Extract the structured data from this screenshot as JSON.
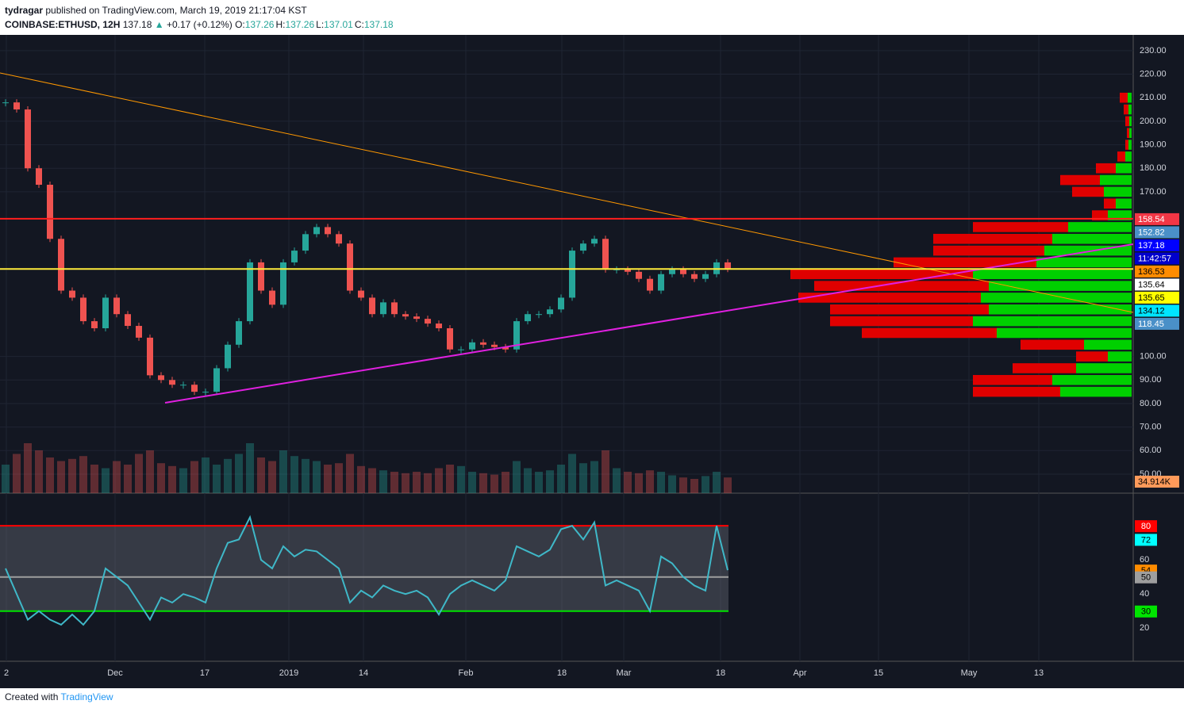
{
  "header": {
    "author": "tydragar",
    "published": "published on TradingView.com, March 19, 2019 21:17:04 KST",
    "symbol": "COINBASE:ETHUSD, 12H",
    "price": "137.18",
    "arrow": "▲",
    "change": "+0.17 (+0.12%)",
    "ohlc": [
      {
        "key": "O:",
        "val": "137.26"
      },
      {
        "key": "H:",
        "val": "137.26"
      },
      {
        "key": "L:",
        "val": "137.01"
      },
      {
        "key": "C:",
        "val": "137.18"
      }
    ]
  },
  "footer": {
    "prefix": "Created with",
    "brand": "TradingView"
  },
  "chart_data": {
    "type": "candlestick",
    "xtick_labels": [
      "2",
      "Dec",
      "17",
      "2019",
      "14",
      "Feb",
      "18",
      "Mar",
      "18",
      "Apr",
      "15",
      "May",
      "13"
    ],
    "up_color": "#26a69a",
    "down_color": "#ef5350",
    "values": [
      208,
      205,
      180,
      173,
      150,
      128,
      125,
      115,
      112,
      125,
      118,
      113,
      108,
      92,
      90,
      88,
      88,
      85,
      85,
      95,
      105,
      115,
      140,
      128,
      122,
      140,
      145,
      152,
      155,
      152,
      148,
      128,
      125,
      118,
      123,
      118,
      117,
      116,
      114,
      112,
      103,
      103,
      106,
      105,
      104,
      103,
      115,
      118,
      118,
      120,
      125,
      145,
      148,
      150,
      137,
      137,
      136,
      133,
      128,
      135,
      137,
      135,
      133,
      135,
      140,
      137.18
    ],
    "volumes": [
      40,
      55,
      70,
      60,
      50,
      45,
      48,
      52,
      40,
      35,
      45,
      40,
      55,
      60,
      42,
      38,
      35,
      45,
      50,
      40,
      48,
      55,
      70,
      50,
      45,
      60,
      52,
      48,
      45,
      40,
      42,
      55,
      38,
      35,
      32,
      30,
      28,
      30,
      28,
      35,
      40,
      38,
      30,
      28,
      26,
      30,
      45,
      35,
      30,
      32,
      40,
      55,
      42,
      45,
      60,
      35,
      30,
      28,
      32,
      30,
      25,
      22,
      20,
      24,
      30,
      22
    ],
    "ylim": [
      41.9,
      236.7
    ],
    "yticks": [
      {
        "value": 50,
        "label": "50.00"
      },
      {
        "value": 60,
        "label": "60.00"
      },
      {
        "value": 70,
        "label": "70.00"
      },
      {
        "value": 80,
        "label": "80.00"
      },
      {
        "value": 90,
        "label": "90.00"
      },
      {
        "value": 100,
        "label": "100.00"
      },
      {
        "value": 170,
        "label": "170.00"
      },
      {
        "value": 180,
        "label": "180.00"
      },
      {
        "value": 190,
        "label": "190.00"
      },
      {
        "value": 200,
        "label": "200.00"
      },
      {
        "value": 210,
        "label": "210.00"
      },
      {
        "value": 220,
        "label": "220.00"
      },
      {
        "value": 230,
        "label": "230.00"
      }
    ],
    "hlines": [
      {
        "value": 158.54,
        "color": "#ff1e1e"
      },
      {
        "value": 137.18,
        "color": "#ffeb3b"
      }
    ],
    "price_labels": [
      {
        "text": 158.54,
        "color": "#f23645"
      },
      {
        "text": 152.82,
        "color": "#4a90c8"
      },
      {
        "text": 137.18,
        "color": "#0000ff"
      },
      {
        "text": "11:42:57",
        "color": "#0000cc"
      },
      {
        "text": 136.53,
        "color": "#ff8c00"
      },
      {
        "text": 135.64,
        "color": "#ffffff"
      },
      {
        "text": 135.65,
        "color": "#ffff00"
      },
      {
        "text": 134.12,
        "color": "#00e5ff"
      },
      {
        "text": 118.45,
        "color": "#4a90c8"
      },
      {
        "text": "34.914K",
        "color": "#ff9a5a"
      }
    ],
    "profile_prices": [
      210,
      205,
      200,
      195,
      190,
      185,
      180,
      175,
      170,
      165,
      160,
      155,
      150,
      145,
      140,
      135,
      130,
      125,
      120,
      115,
      110,
      105,
      100,
      95,
      90,
      85
    ],
    "profile_up": [
      5,
      4,
      3,
      3,
      4,
      8,
      20,
      40,
      35,
      20,
      30,
      80,
      100,
      110,
      120,
      200,
      180,
      190,
      180,
      200,
      170,
      60,
      30,
      70,
      100,
      90
    ],
    "profile_down": [
      10,
      6,
      5,
      3,
      4,
      10,
      25,
      50,
      40,
      15,
      20,
      120,
      150,
      140,
      180,
      230,
      220,
      230,
      200,
      180,
      170,
      80,
      40,
      80,
      100,
      110
    ],
    "rsi": {
      "values": [
        55,
        40,
        25,
        30,
        25,
        22,
        28,
        22,
        30,
        55,
        50,
        45,
        35,
        25,
        38,
        35,
        40,
        38,
        35,
        55,
        70,
        72,
        85,
        60,
        55,
        68,
        62,
        66,
        65,
        60,
        55,
        35,
        42,
        38,
        45,
        42,
        40,
        42,
        38,
        28,
        40,
        45,
        48,
        45,
        42,
        48,
        68,
        65,
        62,
        66,
        78,
        80,
        72,
        82,
        45,
        48,
        45,
        42,
        30,
        62,
        58,
        50,
        45,
        42,
        80,
        54
      ],
      "color": "#3fb8c8",
      "ylim": [
        0.6,
        98.2
      ],
      "yticks": [
        20,
        40,
        60
      ],
      "levels": [
        {
          "text": 80,
          "color": "#ff0000",
          "line": true
        },
        {
          "text": 72,
          "color": "#00ffff",
          "line": false
        },
        {
          "text": 54,
          "color": "#ff8c00",
          "line": false
        },
        {
          "text": 50,
          "color": "#9e9e9e",
          "line": true
        },
        {
          "text": 30,
          "color": "#00e400",
          "line": true
        }
      ]
    }
  }
}
